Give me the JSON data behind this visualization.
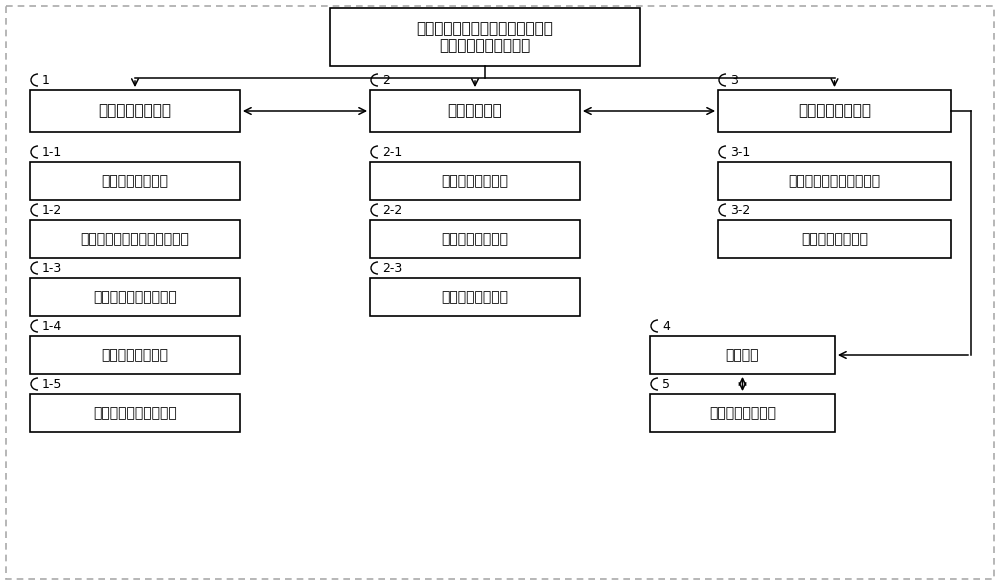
{
  "bg_color": "#ffffff",
  "box_color": "#ffffff",
  "border_color": "#000000",
  "title_text": "基于沉浸式虚拟现实的疼痛科置换\n术后中医情志护理系统",
  "boxes": [
    {
      "id": "title",
      "col": 1,
      "row": 0,
      "label": "基于沉浸式虚拟现实的疼痛科置换\n术后中医情志护理系统",
      "num": ""
    },
    {
      "id": "b1",
      "col": 0,
      "row": 1,
      "label": "护理方案设计模块",
      "num": "1"
    },
    {
      "id": "b2",
      "col": 1,
      "row": 1,
      "label": "标准定义模块",
      "num": "2"
    },
    {
      "id": "b3",
      "col": 2,
      "row": 1,
      "label": "试验数据获取模块",
      "num": "3"
    },
    {
      "id": "b11",
      "col": 0,
      "row": 2,
      "label": "文献资料分析模块",
      "num": "1-1"
    },
    {
      "id": "b12",
      "col": 0,
      "row": 3,
      "label": "沉浸式虚拟现实应用分析模块",
      "num": "1-2"
    },
    {
      "id": "b13",
      "col": 0,
      "row": 4,
      "label": "情志护理方案设计模块",
      "num": "1-3"
    },
    {
      "id": "b14",
      "col": 0,
      "row": 5,
      "label": "测试护理方案模块",
      "num": "1-4"
    },
    {
      "id": "b15",
      "col": 0,
      "row": 6,
      "label": "完成护理方案设计模块",
      "num": "1-5"
    },
    {
      "id": "b21",
      "col": 1,
      "row": 2,
      "label": "入组标准定义模块",
      "num": "2-1"
    },
    {
      "id": "b22",
      "col": 1,
      "row": 3,
      "label": "排除标准定义模块",
      "num": "2-2"
    },
    {
      "id": "b23",
      "col": 1,
      "row": 4,
      "label": "疗效标准定义模块",
      "num": "2-3"
    },
    {
      "id": "b31",
      "col": 2,
      "row": 2,
      "label": "建立实验组和对照组模块",
      "num": "3-1"
    },
    {
      "id": "b32",
      "col": 2,
      "row": 3,
      "label": "收集实验数据模块",
      "num": "3-2"
    },
    {
      "id": "b4",
      "col": 2,
      "row": 5,
      "label": "评价模块",
      "num": "4"
    },
    {
      "id": "b5",
      "col": 2,
      "row": 6,
      "label": "完善护理方案模块",
      "num": "5"
    }
  ],
  "font_size_title": 11,
  "font_size_main": 11,
  "font_size_sub": 10,
  "font_size_num": 9
}
